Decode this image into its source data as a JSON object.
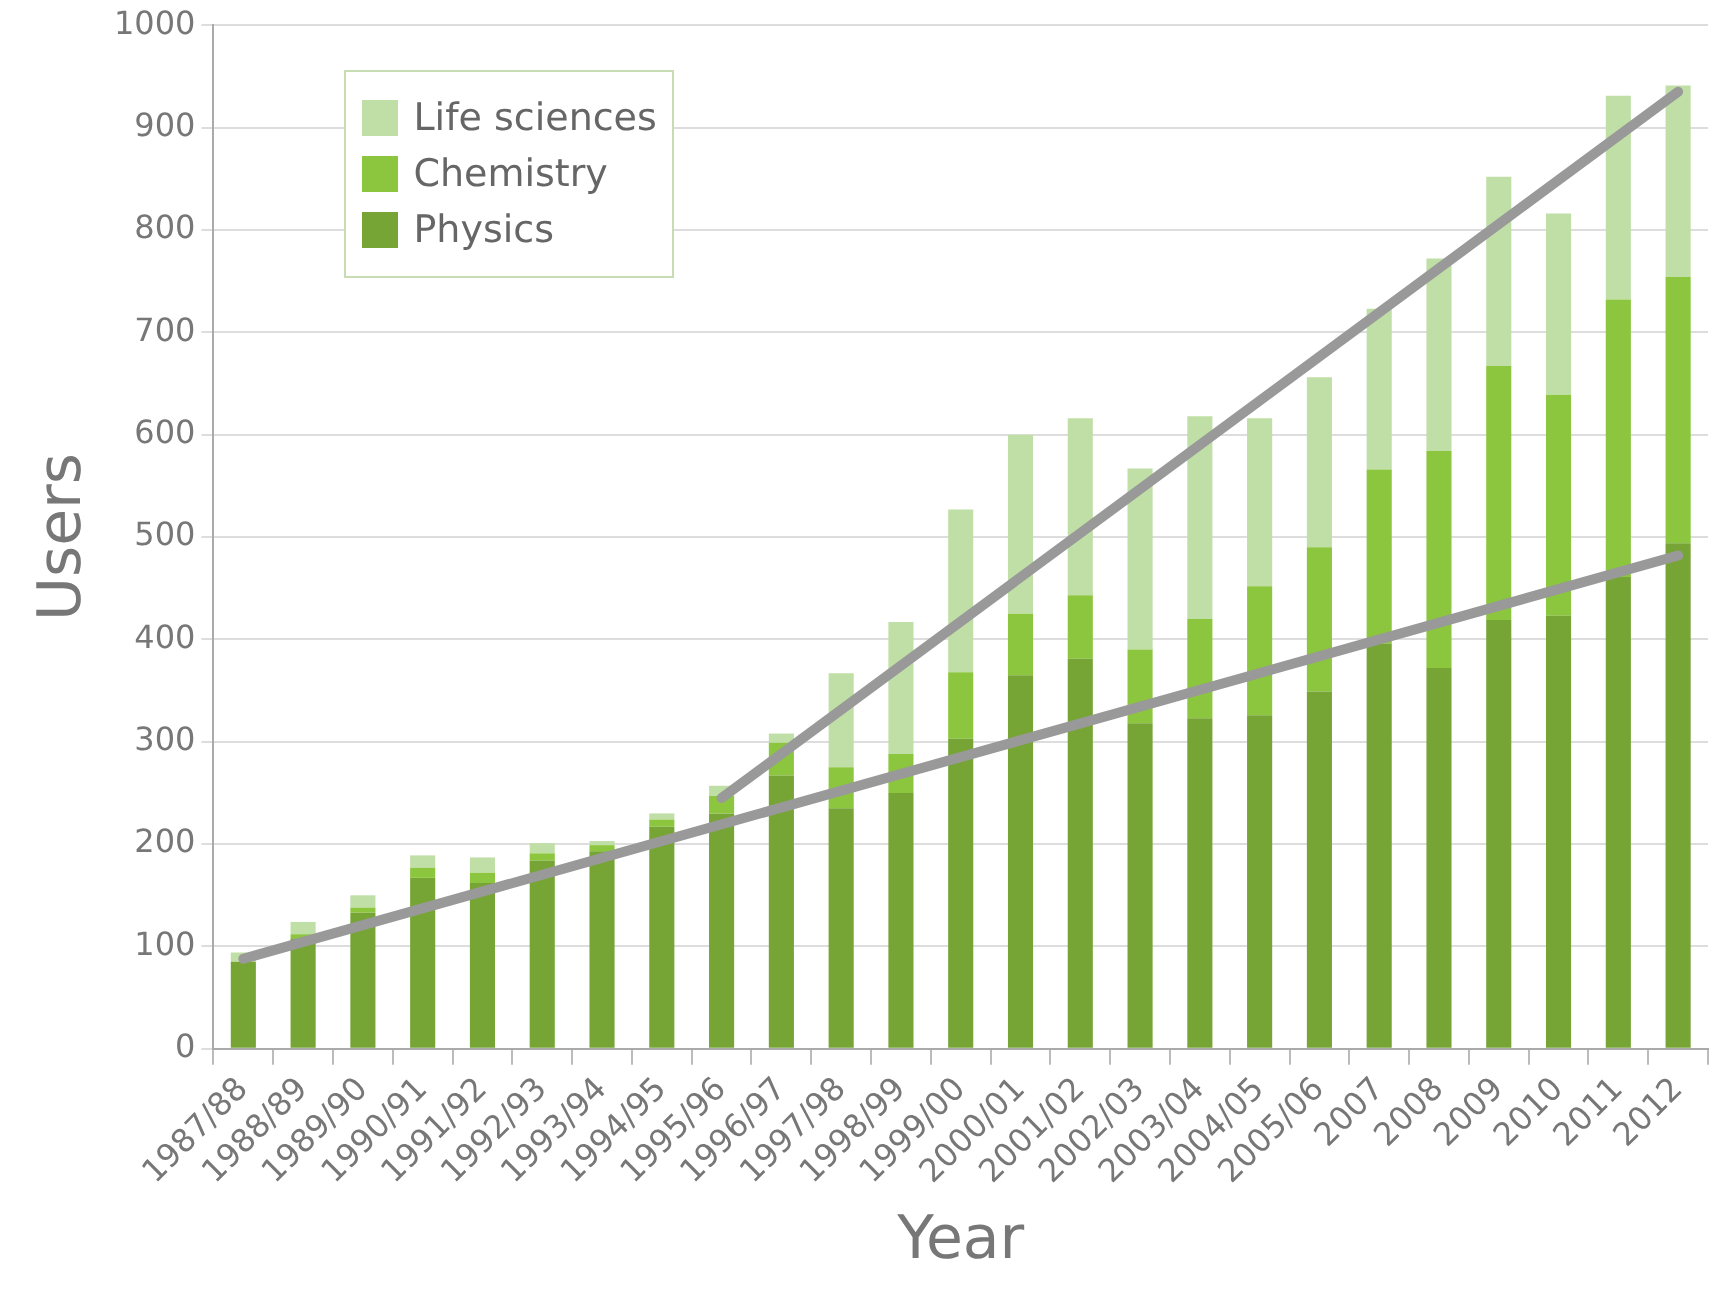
{
  "chart_data": {
    "type": "bar",
    "stacked": true,
    "xlabel": "Year",
    "ylabel": "Users",
    "categories": [
      "1987/88",
      "1988/89",
      "1989/90",
      "1990/91",
      "1991/92",
      "1992/93",
      "1993/94",
      "1994/95",
      "1995/96",
      "1996/97",
      "1997/98",
      "1998/99",
      "1999/00",
      "2000/01",
      "2001/02",
      "2002/03",
      "2003/04",
      "2004/05",
      "2005/06",
      "2007",
      "2008",
      "2009",
      "2010",
      "2011",
      "2012"
    ],
    "series": [
      {
        "name": "Physics",
        "color": "#76a535",
        "values": [
          85,
          108,
          133,
          167,
          162,
          184,
          193,
          217,
          230,
          267,
          235,
          250,
          303,
          365,
          381,
          318,
          323,
          326,
          349,
          396,
          372,
          419,
          423,
          461,
          494
        ]
      },
      {
        "name": "Chemistry",
        "color": "#8cc63f",
        "values": [
          null,
          4,
          5,
          10,
          10,
          7,
          6,
          7,
          17,
          32,
          40,
          38,
          65,
          60,
          62,
          72,
          97,
          126,
          141,
          170,
          212,
          248,
          216,
          271,
          260
        ]
      },
      {
        "name": "Life sciences",
        "color": "#c0dfa6",
        "values": [
          9,
          12,
          12,
          12,
          15,
          10,
          4,
          6,
          10,
          9,
          92,
          129,
          159,
          175,
          173,
          177,
          198,
          164,
          166,
          157,
          188,
          185,
          177,
          199,
          187
        ]
      },
      {
        "type": "line",
        "color": "#999999",
        "values": [
          88,
          null,
          null,
          null,
          null,
          null,
          null,
          null,
          null,
          null,
          null,
          null,
          null,
          null,
          null,
          null,
          null,
          null,
          null,
          null,
          null,
          null,
          null,
          null,
          482
        ]
      },
      {
        "type": "line",
        "color": "#999999",
        "values": [
          null,
          null,
          null,
          null,
          null,
          null,
          null,
          null,
          245,
          null,
          null,
          null,
          null,
          null,
          null,
          null,
          null,
          null,
          null,
          null,
          null,
          null,
          null,
          null,
          935
        ]
      }
    ],
    "ylim": [
      0,
      1000
    ],
    "yticks": [
      0,
      100,
      200,
      300,
      400,
      500,
      600,
      700,
      800,
      900,
      1000
    ],
    "grid": "y",
    "legend": "top left"
  }
}
